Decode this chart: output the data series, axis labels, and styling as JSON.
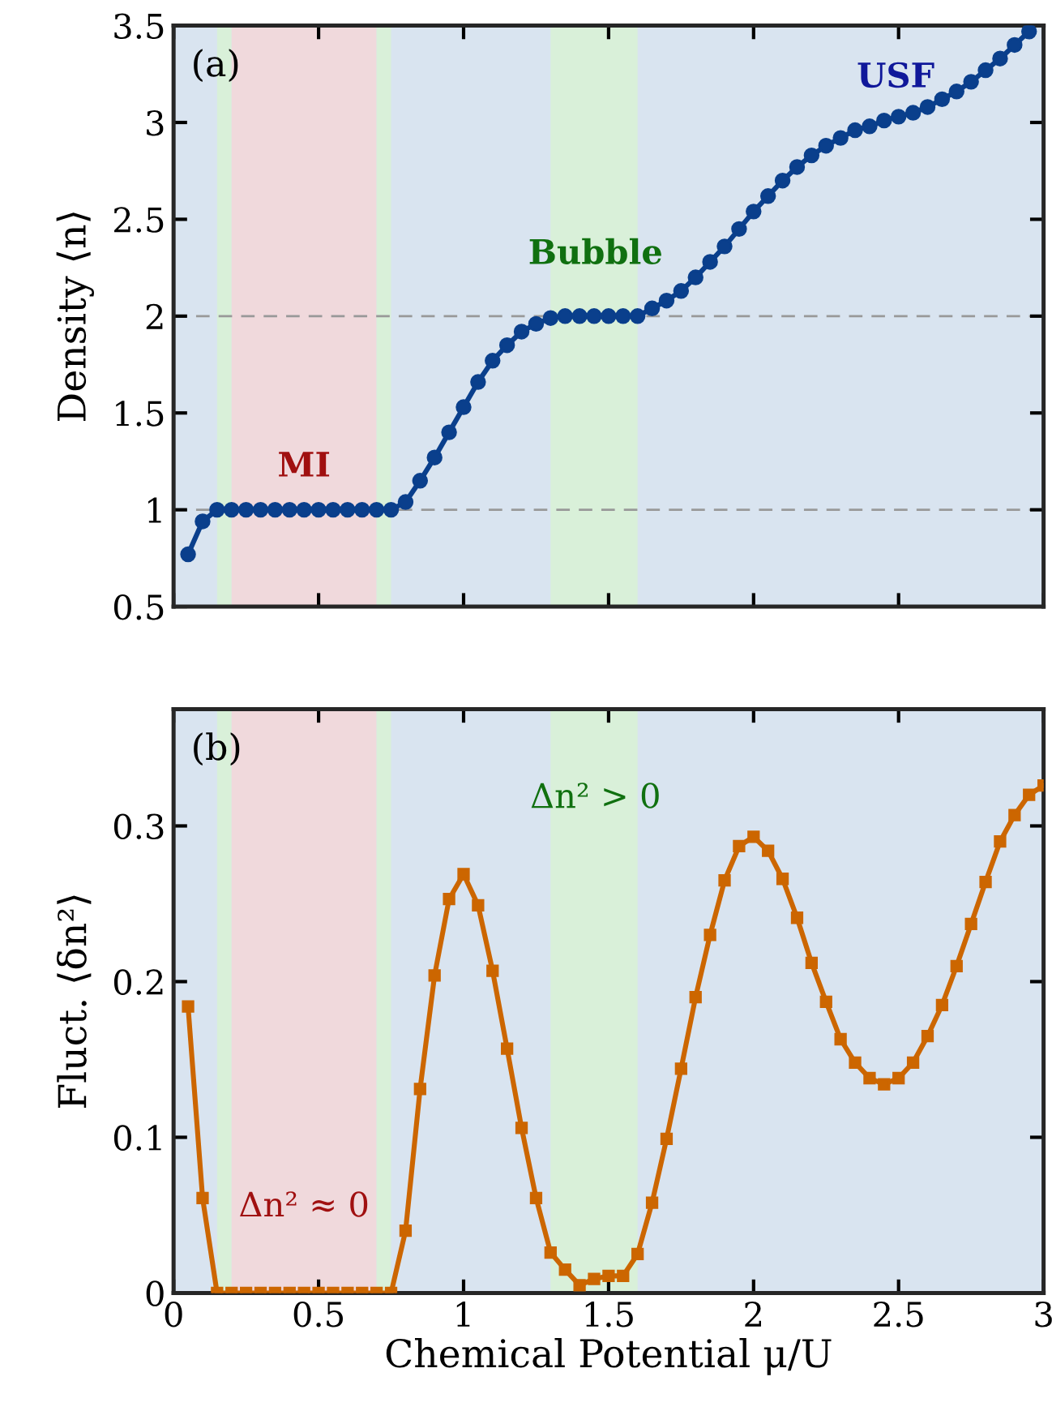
{
  "chart_data": [
    {
      "type": "line",
      "ylabel": "Density ⟨n⟩",
      "tick_labels": "y",
      "marker": "circle",
      "line_style": "solid",
      "grid": false,
      "legend": false,
      "xlim": [
        0,
        3
      ],
      "xticks": [
        0,
        0.5,
        1,
        1.5,
        2,
        2.5,
        3
      ],
      "ylim": [
        0.5,
        3.5
      ],
      "yticks": [
        0.5,
        1,
        1.5,
        2,
        2.5,
        3,
        3.5
      ],
      "series": [
        {
          "color": "#0a3f8c",
          "x": [
            0.05,
            0.1,
            0.15,
            0.2,
            0.25,
            0.3,
            0.35,
            0.4,
            0.45,
            0.5,
            0.55,
            0.6,
            0.65,
            0.7,
            0.75,
            0.8,
            0.85,
            0.9,
            0.95,
            1.0,
            1.05,
            1.1,
            1.15,
            1.2,
            1.25,
            1.3,
            1.35,
            1.4,
            1.45,
            1.5,
            1.55,
            1.6,
            1.65,
            1.7,
            1.75,
            1.8,
            1.85,
            1.9,
            1.95,
            2.0,
            2.05,
            2.1,
            2.15,
            2.2,
            2.25,
            2.3,
            2.35,
            2.4,
            2.45,
            2.5,
            2.55,
            2.6,
            2.65,
            2.7,
            2.75,
            2.8,
            2.85,
            2.9,
            2.95
          ],
          "values": [
            0.77,
            0.94,
            1.0,
            1.0,
            1.0,
            1.0,
            1.0,
            1.0,
            1.0,
            1.0,
            1.0,
            1.0,
            1.0,
            1.0,
            1.0,
            1.04,
            1.15,
            1.27,
            1.4,
            1.53,
            1.66,
            1.77,
            1.85,
            1.92,
            1.96,
            1.99,
            2.0,
            2.0,
            2.0,
            2.0,
            2.0,
            2.0,
            2.04,
            2.08,
            2.13,
            2.2,
            2.28,
            2.36,
            2.45,
            2.54,
            2.62,
            2.7,
            2.77,
            2.83,
            2.88,
            2.92,
            2.96,
            2.98,
            3.01,
            3.03,
            3.05,
            3.08,
            3.12,
            3.16,
            3.21,
            3.27,
            3.33,
            3.4,
            3.47
          ]
        }
      ],
      "bands": [
        {
          "axis": "x",
          "from": 0,
          "to": 3,
          "color": "#d9e4f0"
        },
        {
          "axis": "x",
          "from": 0.15,
          "to": 0.2,
          "color": "#d9f0d9"
        },
        {
          "axis": "x",
          "from": 0.2,
          "to": 0.7,
          "color": "#f0d9dc"
        },
        {
          "axis": "x",
          "from": 0.7,
          "to": 0.75,
          "color": "#d9f0d9"
        },
        {
          "axis": "x",
          "from": 1.3,
          "to": 1.6,
          "color": "#d9f0d9"
        }
      ],
      "ref_lines": [
        {
          "axis": "y",
          "value": 1,
          "color": "#999999",
          "line_style": "dashed"
        },
        {
          "axis": "y",
          "value": 2,
          "color": "#999999",
          "line_style": "dashed"
        }
      ],
      "annotations": [
        "(a)",
        "MI",
        "Bubble",
        "USF"
      ]
    },
    {
      "type": "line",
      "xlabel": "Chemical Potential μ/U",
      "ylabel": "Fluct. ⟨δn²⟩",
      "marker": "square",
      "line_style": "solid",
      "grid": false,
      "legend": false,
      "xlim": [
        0,
        3
      ],
      "xticks": [
        0,
        0.5,
        1,
        1.5,
        2,
        2.5,
        3
      ],
      "ylim": [
        0,
        0.375
      ],
      "yticks": [
        0,
        0.1,
        0.2,
        0.3
      ],
      "series": [
        {
          "color": "#cc6600",
          "x": [
            0.05,
            0.1,
            0.15,
            0.2,
            0.25,
            0.3,
            0.35,
            0.4,
            0.45,
            0.5,
            0.55,
            0.6,
            0.65,
            0.7,
            0.75,
            0.8,
            0.85,
            0.9,
            0.95,
            1.0,
            1.05,
            1.1,
            1.15,
            1.2,
            1.25,
            1.3,
            1.35,
            1.4,
            1.45,
            1.5,
            1.55,
            1.6,
            1.65,
            1.7,
            1.75,
            1.8,
            1.85,
            1.9,
            1.95,
            2.0,
            2.05,
            2.1,
            2.15,
            2.2,
            2.25,
            2.3,
            2.35,
            2.4,
            2.45,
            2.5,
            2.55,
            2.6,
            2.65,
            2.7,
            2.75,
            2.8,
            2.85,
            2.9,
            2.95,
            3.0
          ],
          "values": [
            0.184,
            0.061,
            0,
            0,
            0,
            0,
            0,
            0,
            0,
            0,
            0,
            0,
            0,
            0,
            0,
            0.04,
            0.131,
            0.204,
            0.253,
            0.269,
            0.249,
            0.207,
            0.157,
            0.106,
            0.061,
            0.026,
            0.015,
            0.005,
            0.009,
            0.011,
            0.011,
            0.025,
            0.058,
            0.099,
            0.144,
            0.19,
            0.23,
            0.265,
            0.287,
            0.293,
            0.284,
            0.266,
            0.241,
            0.212,
            0.187,
            0.163,
            0.148,
            0.138,
            0.134,
            0.138,
            0.148,
            0.165,
            0.185,
            0.21,
            0.237,
            0.264,
            0.29,
            0.307,
            0.32,
            0.326
          ]
        }
      ],
      "bands": [
        {
          "axis": "x",
          "from": 0,
          "to": 3,
          "color": "#d9e4f0"
        },
        {
          "axis": "x",
          "from": 0.15,
          "to": 0.2,
          "color": "#d9f0d9"
        },
        {
          "axis": "x",
          "from": 0.2,
          "to": 0.7,
          "color": "#f0d9dc"
        },
        {
          "axis": "x",
          "from": 0.7,
          "to": 0.75,
          "color": "#d9f0d9"
        },
        {
          "axis": "x",
          "from": 1.3,
          "to": 1.6,
          "color": "#d9f0d9"
        }
      ],
      "annotations": [
        "(b)",
        "Δn² ≈ 0",
        "Δn² > 0"
      ]
    }
  ]
}
